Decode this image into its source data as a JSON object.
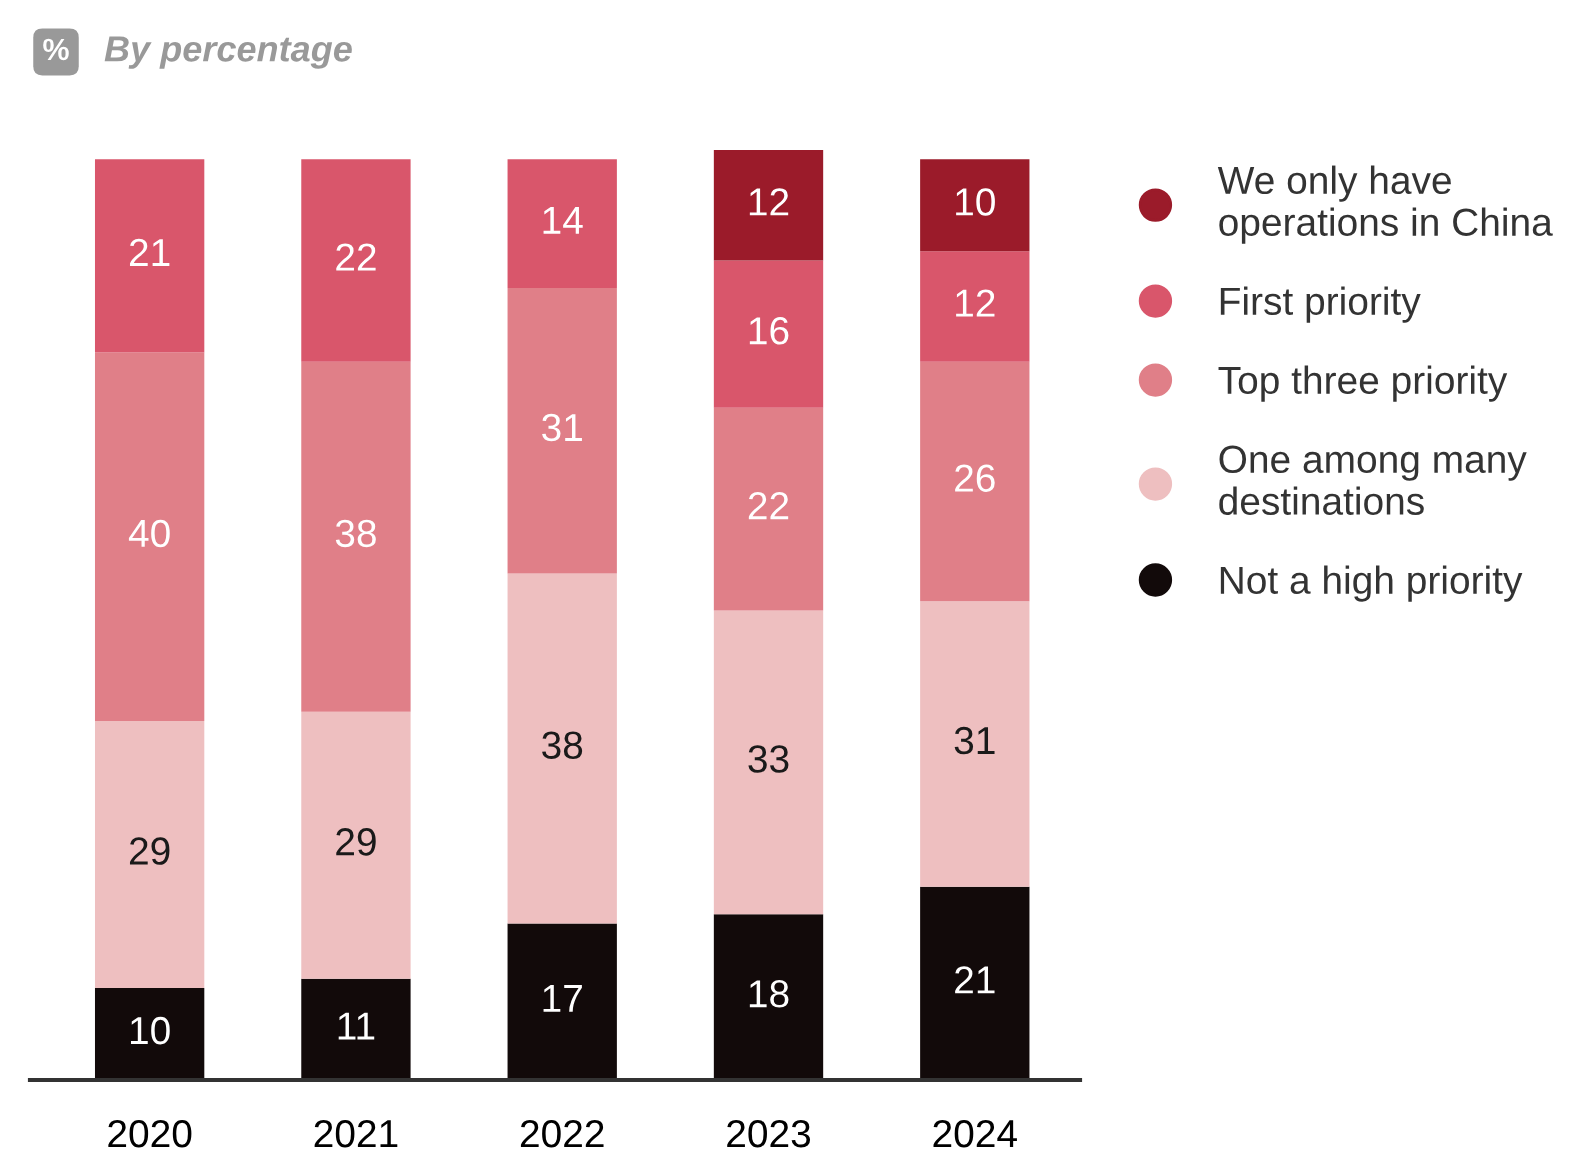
{
  "chart_data": {
    "type": "bar",
    "title": "By percentage",
    "annotations": [
      "%"
    ],
    "categories": [
      "2020",
      "2021",
      "2022",
      "2023",
      "2024"
    ],
    "stacked": true,
    "data_labels": true,
    "legend": "right",
    "grid": false,
    "series": [
      {
        "name": "Not a high priority",
        "color": "#120a0a",
        "values": [
          10,
          11,
          17,
          18,
          21
        ]
      },
      {
        "name": "One among many\ndestinations",
        "color": "#eebfc0",
        "values": [
          29,
          29,
          38,
          33,
          31
        ]
      },
      {
        "name": "Top three priority",
        "color": "#e07f88",
        "values": [
          40,
          38,
          31,
          22,
          26
        ]
      },
      {
        "name": "First priority",
        "color": "#d9566b",
        "values": [
          21,
          22,
          14,
          16,
          12
        ]
      },
      {
        "name": "We only have\noperations in China",
        "color": "#9b1b2a",
        "values": [
          null,
          null,
          null,
          12,
          10
        ]
      }
    ]
  }
}
